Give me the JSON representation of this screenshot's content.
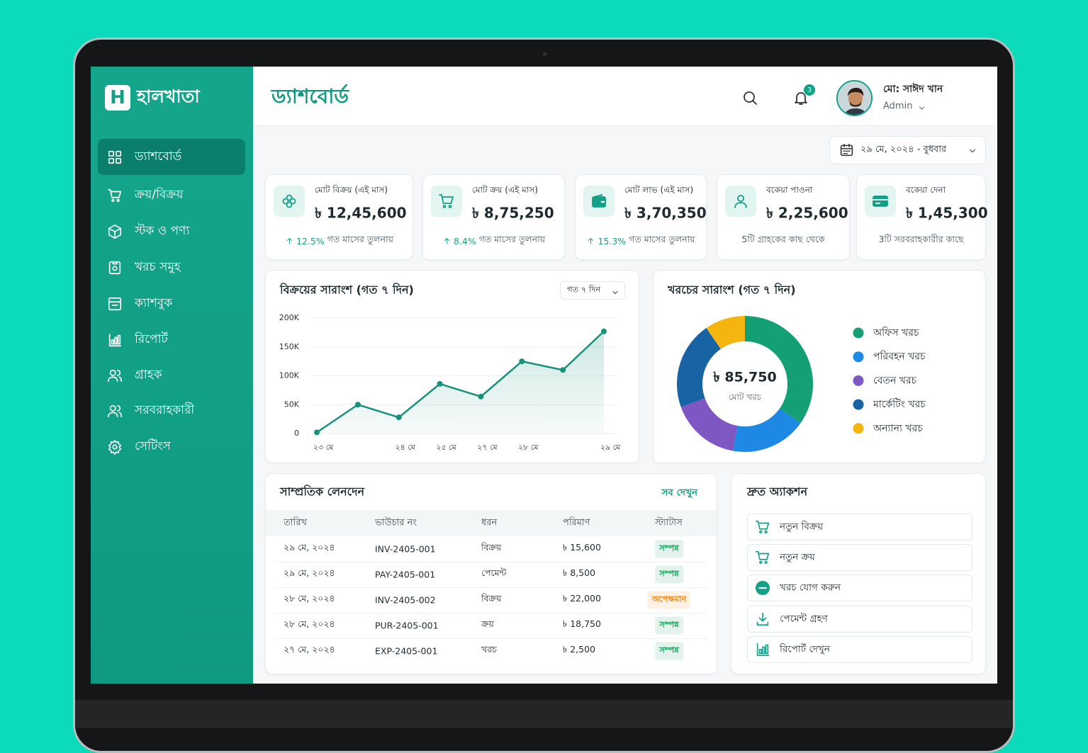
{
  "sidebar": {
    "logo_letter": "H",
    "brand": "হালখাতা",
    "active": 0,
    "nav": [
      "ড্যাশবোর্ড",
      "ক্রয়/বিক্রয়",
      "স্টক ও পণ্য",
      "খরচ সমুহ",
      "ক্যাশবুক",
      "রিপোর্ট",
      "গ্রাহক",
      "সরবরাহকারী",
      "সেটিংস"
    ]
  },
  "header": {
    "title": "ড্যাশবোর্ড",
    "notifications": "3",
    "user_name": "মো: সাঈদ খান",
    "user_role": "Admin"
  },
  "date_picker": "২৯ মে, ২০২৪ - বুধবার",
  "kpis": [
    {
      "label": "মোট বিক্রয় (এই মাস)",
      "value": "৳ 12,45,600",
      "change": "12.5%",
      "note": "গত মাসের তুলনায়"
    },
    {
      "label": "মোট ক্রয় (এই মাস)",
      "value": "৳ 8,75,250",
      "change": "8.4%",
      "note": "গত মাসের তুলনায়"
    },
    {
      "label": "মোট লাভ (এই মাস)",
      "value": "৳ 3,70,350",
      "change": "15.3%",
      "note": "গত মাসের তুলনায়"
    },
    {
      "label": "বকেয়া পাওনা",
      "value": "৳ 2,25,600",
      "note": "5টি গ্রাহকের কাছ থেকে"
    },
    {
      "label": "বকেয়া দেনা",
      "value": "৳ 1,45,300",
      "note": "3টি সরবরাহকারীর কাছে"
    }
  ],
  "chart_data": [
    {
      "type": "line",
      "title": "বিক্রয়ের সারাংশ (গত ৭ দিন)",
      "period": "গত ৭ দিন",
      "categories": [
        "২৩ মে",
        null,
        "২৪ মে",
        "২৫ মে",
        "২৭ মে",
        "২৮ মে",
        null,
        "২৯ মে"
      ],
      "values": [
        2000,
        50000,
        28000,
        86000,
        64000,
        125000,
        110000,
        177000
      ],
      "color": "#17927c",
      "ylim": [
        0,
        200000
      ],
      "yticks": [
        0,
        {
          "value": 50000,
          "label": "50K"
        },
        {
          "value": 100000,
          "label": "100K"
        },
        {
          "value": 150000,
          "label": "150K"
        },
        {
          "value": 200000,
          "label": "200K"
        }
      ],
      "grid": true
    },
    {
      "type": "donut",
      "title": "খরচের সারাংশ (গত ৭ দিন)",
      "center_value": "৳ 85,750",
      "center_label": "মোট খরচ",
      "categories": [
        "অফিস খরচ",
        "পরিবহন খরচ",
        "বেতন খরচ",
        "মার্কেটিং খরচ",
        "অন্যান্য খরচ"
      ],
      "values": [
        29800,
        15500,
        14300,
        17900,
        8250
      ],
      "colors": [
        "#14a074",
        "#1e88e5",
        "#7e57c2",
        "#1763a3",
        "#f5b50f"
      ]
    }
  ],
  "transactions": {
    "title": "সাম্প্রতিক লেনদেন",
    "view_all": "সব দেখুন",
    "columns": [
      "তারিখ",
      "ভাউচার নং",
      "ধরন",
      "পরিমাণ",
      "স্ট্যাটাস"
    ],
    "rows": [
      {
        "date": "২৯ মে, ২০২৪",
        "voucher": "INV-2405-001",
        "type": "বিক্রয়",
        "amount": "৳ 15,600",
        "status": "সম্পন্ন",
        "status_color": "#16a05e"
      },
      {
        "date": "২৯ মে, ২০২৪",
        "voucher": "PAY-2405-001",
        "type": "পেমেন্ট",
        "amount": "৳ 8,500",
        "status": "সম্পন্ন",
        "status_color": "#16a05e"
      },
      {
        "date": "২৮ মে, ২০২৪",
        "voucher": "INV-2405-002",
        "type": "বিক্রয়",
        "amount": "৳ 22,000",
        "status": "অপেক্ষমান",
        "status_color": "#f08a1c"
      },
      {
        "date": "২৮ মে, ২০২৪",
        "voucher": "PUR-2405-001",
        "type": "ক্রয়",
        "amount": "৳ 18,750",
        "status": "সম্পন্ন",
        "status_color": "#16a05e"
      },
      {
        "date": "২৭ মে, ২০২৪",
        "voucher": "EXP-2405-001",
        "type": "খরচ",
        "amount": "৳ 2,500",
        "status": "সম্পন্ন",
        "status_color": "#16a05e"
      }
    ]
  },
  "quick_actions": {
    "title": "দ্রুত অ্যাকশন",
    "items": [
      "নতুন বিক্রয়",
      "নতুন ক্রয়",
      "খরচ যোগ করুন",
      "পেমেন্ট গ্রহণ",
      "রিপোর্ট দেখুন"
    ]
  }
}
